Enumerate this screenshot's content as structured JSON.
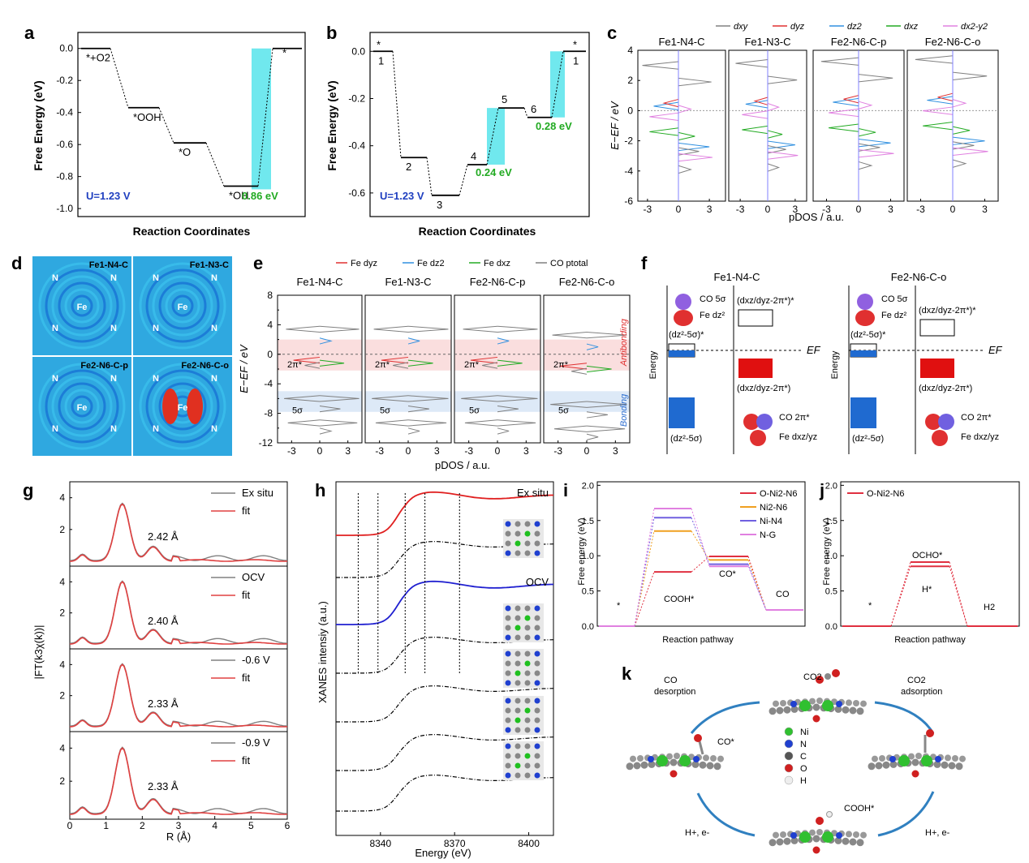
{
  "colors": {
    "black": "#000000",
    "red": "#e03030",
    "blue": "#2040c0",
    "green": "#22aa22",
    "cyan": "#40e0e8",
    "grey": "#808080",
    "pink": "#e080e0",
    "orange": "#f0a020",
    "violet": "#7060e0",
    "dblue": "#2040d0",
    "lblue": "#3090e0"
  },
  "panels": {
    "a": "a",
    "b": "b",
    "c": "c",
    "d": "d",
    "e": "e",
    "f": "f",
    "g": "g",
    "h": "h",
    "i": "i",
    "j": "j",
    "k": "k"
  },
  "chart_data": [
    {
      "id": "a",
      "type": "line",
      "ylabel": "Free Energy (eV)",
      "xlabel": "Reaction Coordinates",
      "ylim": [
        -1.05,
        0.1
      ],
      "yticks": [
        "0.0",
        "-0.2",
        "-0.4",
        "-0.6",
        "-0.8",
        "-1.0"
      ],
      "steps": [
        {
          "label": "*+O2",
          "value": 0.0
        },
        {
          "label": "*OOH",
          "value": -0.37
        },
        {
          "label": "*O",
          "value": -0.59
        },
        {
          "label": "*OH",
          "value": -0.86
        },
        {
          "label": "*",
          "value": 0.0
        }
      ],
      "annotations": {
        "potential": "U=1.23 V",
        "barrier": "0.86 eV"
      }
    },
    {
      "id": "b",
      "type": "line",
      "ylabel": "Free Energy (eV)",
      "xlabel": "Reaction Coordinates",
      "ylim": [
        -0.7,
        0.08
      ],
      "yticks": [
        "0.0",
        "-0.2",
        "-0.4",
        "-0.6"
      ],
      "steps": [
        {
          "label": "1",
          "value": 0.0
        },
        {
          "label": "2",
          "value": -0.45
        },
        {
          "label": "3",
          "value": -0.61
        },
        {
          "label": "4",
          "value": -0.48
        },
        {
          "label": "5",
          "value": -0.24
        },
        {
          "label": "6",
          "value": -0.28
        },
        {
          "label": "1",
          "value": 0.0
        }
      ],
      "annotations": {
        "potential": "U=1.23 V",
        "barrier1": "0.24 eV",
        "barrier2": "0.28 eV",
        "star1": "*",
        "star2": "*"
      }
    },
    {
      "id": "c",
      "type": "line",
      "ylabel": "E−EF / eV",
      "xlabel": "pDOS / a.u.",
      "ylim": [
        -6,
        4
      ],
      "yticks": [
        "4",
        "2",
        "0",
        "-2",
        "-4",
        "-6"
      ],
      "xticks": [
        "-3",
        "0",
        "3"
      ],
      "legend": [
        "dxy",
        "dyz",
        "dz2",
        "dxz",
        "dx2-y2"
      ],
      "subplots": [
        "Fe1-N4-C",
        "Fe1-N3-C",
        "Fe2-N6-C-p",
        "Fe2-N6-C-o"
      ]
    },
    {
      "id": "e",
      "type": "line",
      "ylabel": "E−EF / eV",
      "xlabel": "pDOS / a.u.",
      "ylim": [
        -12,
        8
      ],
      "yticks": [
        "8",
        "4",
        "0",
        "-4",
        "-8",
        "-12"
      ],
      "yticks_minor": [
        "6",
        "2",
        "-2",
        "-6",
        "-10"
      ],
      "xticks": [
        "-3",
        "0",
        "3"
      ],
      "legend": [
        "Fe dyz",
        "Fe dz2",
        "Fe dxz",
        "CO ptotal"
      ],
      "subplots": [
        "Fe1-N4-C",
        "Fe1-N3-C",
        "Fe2-N6-C-p",
        "Fe2-N6-C-o"
      ],
      "labels": {
        "antibonding": "Antibonding",
        "bonding": "Bonding",
        "pi": "2π*",
        "sigma": "5σ"
      }
    },
    {
      "id": "g",
      "type": "line",
      "ylabel": "|FT(k3χ(k))|",
      "xlabel": "R (Å)",
      "xlim": [
        0,
        6
      ],
      "xticks": [
        "0",
        "1",
        "2",
        "3",
        "4",
        "5",
        "6"
      ],
      "yticks": [
        "4",
        "2"
      ],
      "subplots": [
        {
          "legend": [
            "Ex situ",
            "fit"
          ],
          "distance": "2.42 Å"
        },
        {
          "legend": [
            "OCV",
            "fit"
          ],
          "distance": "2.40 Å"
        },
        {
          "legend": [
            "-0.6 V",
            "fit"
          ],
          "distance": "2.33 Å"
        },
        {
          "legend": [
            "-0.9 V",
            "fit"
          ],
          "distance": "2.33 Å"
        }
      ]
    },
    {
      "id": "h",
      "type": "line",
      "ylabel": "XANES intensiy (a.u.)",
      "xlabel": "Energy (eV)",
      "xticks": [
        "8340",
        "8370",
        "8400"
      ],
      "labels": [
        "Ex situ",
        "OCV"
      ]
    },
    {
      "id": "i",
      "type": "line",
      "ylabel": "Free energy (eV)",
      "xlabel": "Reaction pathway",
      "ylim": [
        0,
        2.0
      ],
      "yticks": [
        "0.0",
        "0.5",
        "1.0",
        "1.5",
        "2.0"
      ],
      "legend": [
        "O-Ni2-N6",
        "Ni2-N6",
        "Ni-N4",
        "N-G"
      ],
      "series": [
        {
          "name": "O-Ni2-N6",
          "values": [
            0,
            0.77,
            0.99,
            0.23
          ]
        },
        {
          "name": "Ni2-N6",
          "values": [
            0,
            1.35,
            0.94,
            0.23
          ]
        },
        {
          "name": "Ni-N4",
          "values": [
            0,
            1.54,
            0.88,
            0.23
          ]
        },
        {
          "name": "N-G",
          "values": [
            0,
            1.67,
            0.85,
            0.23
          ]
        }
      ],
      "states": [
        "*",
        "COOH*",
        "CO*",
        "CO"
      ]
    },
    {
      "id": "j",
      "type": "line",
      "ylabel": "Free energy (eV)",
      "xlabel": "Reaction pathway",
      "ylim": [
        0,
        2.0
      ],
      "yticks": [
        "0.0",
        "0.5",
        "1.0",
        "1.5",
        "2.0"
      ],
      "legend": [
        "O-Ni2-N6"
      ],
      "series": [
        {
          "name": "O-Ni2-N6",
          "values": [
            0,
            0.91,
            0.85,
            0
          ]
        }
      ],
      "states": [
        "*",
        "OCHO*",
        "H*",
        "H2"
      ]
    }
  ],
  "d": {
    "titles": [
      "Fe1-N4-C",
      "Fe1-N3-C",
      "Fe2-N6-C-p",
      "Fe2-N6-C-o"
    ],
    "n": "N",
    "fe": "Fe"
  },
  "f": {
    "title1": "Fe1-N4-C",
    "title2": "Fe2-N6-C-o",
    "energy": "Energy",
    "ef": "EF",
    "co5s": "CO 5σ",
    "fedz2": "Fe dz²",
    "dz5s_star": "(dz²-5σ)*",
    "dxz_star": "(dxz/dyz-2π*)*",
    "dxz": "(dxz/dyz-2π*)",
    "dz5s": "(dz²-5σ)",
    "co2pi": "CO 2π*",
    "fedxz": "Fe dxz/yz"
  },
  "k": {
    "co2": "CO2",
    "co_des_1": "CO",
    "co_des_2": "desorption",
    "co2_ads_1": "CO2",
    "co2_ads_2": "adsorption",
    "costar": "CO*",
    "cooh": "COOH*",
    "h1": "H+, e-",
    "h2": "H+, e-",
    "legend": [
      "Ni",
      "N",
      "C",
      "O",
      "H"
    ]
  }
}
